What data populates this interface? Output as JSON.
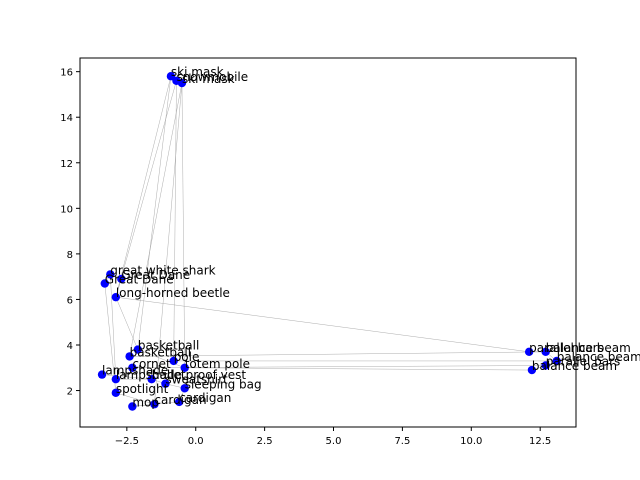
{
  "chart_data": {
    "type": "scatter",
    "title": "",
    "xlabel": "",
    "ylabel": "",
    "xlim": [
      -4.2,
      13.8
    ],
    "ylim": [
      0.4,
      16.6
    ],
    "xticks": [
      -2.5,
      0.0,
      2.5,
      5.0,
      7.5,
      10.0,
      12.5
    ],
    "xtick_labels": [
      "−2.5",
      "0.0",
      "2.5",
      "5.0",
      "7.5",
      "10.0",
      "12.5"
    ],
    "yticks": [
      2,
      4,
      6,
      8,
      10,
      12,
      14,
      16
    ],
    "ytick_labels": [
      "2",
      "4",
      "6",
      "8",
      "10",
      "12",
      "14",
      "16"
    ],
    "grid": false,
    "marker_color": "#0000ff",
    "edge_color": "#999999",
    "points": [
      {
        "label": "ski mask",
        "x": -0.9,
        "y": 15.8
      },
      {
        "label": "snowmobile",
        "x": -0.7,
        "y": 15.6
      },
      {
        "label": "ski mask",
        "x": -0.5,
        "y": 15.5
      },
      {
        "label": "great white shark",
        "x": -3.1,
        "y": 7.1
      },
      {
        "label": "Great Dane",
        "x": -2.7,
        "y": 6.9
      },
      {
        "label": "Great Dane",
        "x": -3.3,
        "y": 6.7
      },
      {
        "label": "long-horned beetle",
        "x": -2.9,
        "y": 6.1
      },
      {
        "label": "basketball",
        "x": -2.1,
        "y": 3.8
      },
      {
        "label": "basketball",
        "x": -2.4,
        "y": 3.5
      },
      {
        "label": "pole",
        "x": -0.8,
        "y": 3.3
      },
      {
        "label": "cornet",
        "x": -2.3,
        "y": 3.0
      },
      {
        "label": "totem pole",
        "x": -0.4,
        "y": 3.0
      },
      {
        "label": "lampshade",
        "x": -3.4,
        "y": 2.7
      },
      {
        "label": "lampshade",
        "x": -2.9,
        "y": 2.5
      },
      {
        "label": "bulletproof vest",
        "x": -1.6,
        "y": 2.5
      },
      {
        "label": "sweatshirt",
        "x": -1.1,
        "y": 2.3
      },
      {
        "label": "spotlight",
        "x": -2.9,
        "y": 1.9
      },
      {
        "label": "sleeping bag",
        "x": -0.4,
        "y": 2.1
      },
      {
        "label": "cardigan",
        "x": -1.5,
        "y": 1.4
      },
      {
        "label": "cardigan",
        "x": -0.6,
        "y": 1.5
      },
      {
        "label": "mop",
        "x": -2.3,
        "y": 1.3
      },
      {
        "label": "parallel bars",
        "x": 12.1,
        "y": 3.7
      },
      {
        "label": "balance beam",
        "x": 12.7,
        "y": 3.7
      },
      {
        "label": "balance beam",
        "x": 13.1,
        "y": 3.3
      },
      {
        "label": "parallel bars",
        "x": 12.7,
        "y": 3.1
      },
      {
        "label": "balance beam",
        "x": 12.2,
        "y": 2.9
      }
    ],
    "edges": [
      [
        0,
        6
      ],
      [
        1,
        9
      ],
      [
        1,
        6
      ],
      [
        2,
        18
      ],
      [
        2,
        11
      ],
      [
        2,
        8
      ],
      [
        0,
        7
      ],
      [
        3,
        4
      ],
      [
        3,
        5
      ],
      [
        3,
        13
      ],
      [
        4,
        6
      ],
      [
        5,
        16
      ],
      [
        6,
        7
      ],
      [
        6,
        21
      ],
      [
        7,
        11
      ],
      [
        8,
        22
      ],
      [
        9,
        23
      ],
      [
        10,
        24
      ],
      [
        11,
        25
      ],
      [
        12,
        14
      ],
      [
        13,
        14
      ],
      [
        14,
        15
      ],
      [
        15,
        17
      ],
      [
        16,
        18
      ],
      [
        18,
        20
      ],
      [
        19,
        20
      ],
      [
        17,
        19
      ],
      [
        21,
        22
      ],
      [
        22,
        23
      ],
      [
        23,
        24
      ],
      [
        24,
        25
      ]
    ]
  }
}
